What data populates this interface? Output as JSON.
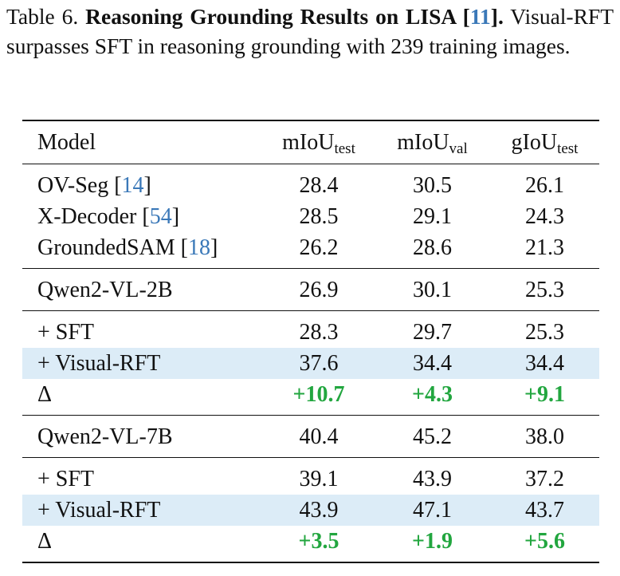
{
  "caption": {
    "label": "Table 6.",
    "title": "Reasoning Grounding Results on LISA [",
    "ref": "11",
    "title_end": "].",
    "text": "Visual-RFT surpasses SFT in reasoning grounding with 239 training images."
  },
  "table": {
    "header": [
      {
        "text": "Model"
      },
      {
        "text": "mIoU",
        "sub": "test"
      },
      {
        "text": "mIoU",
        "sub": "val"
      },
      {
        "text": "gIoU",
        "sub": "test"
      }
    ],
    "groups": [
      [
        {
          "model": {
            "text": "OV-Seg [",
            "ref": "14",
            "after": "]"
          },
          "cells": [
            "28.4",
            "30.5",
            "26.1"
          ]
        },
        {
          "model": {
            "text": "X-Decoder [",
            "ref": "54",
            "after": "]"
          },
          "cells": [
            "28.5",
            "29.1",
            "24.3"
          ]
        },
        {
          "model": {
            "text": "GroundedSAM [",
            "ref": "18",
            "after": "]"
          },
          "cells": [
            "26.2",
            "28.6",
            "21.3"
          ]
        }
      ],
      [
        {
          "model": {
            "text": "Qwen2-VL-2B"
          },
          "cells": [
            "26.9",
            "30.1",
            "25.3"
          ]
        }
      ],
      [
        {
          "model": {
            "text": "+ SFT"
          },
          "cells": [
            "28.3",
            "29.7",
            "25.3"
          ]
        },
        {
          "model": {
            "text": "+ Visual-RFT"
          },
          "cells": [
            "37.6",
            "34.4",
            "34.4"
          ],
          "highlight": true
        },
        {
          "model": {
            "text": "Δ"
          },
          "cells": [
            "+10.7",
            "+4.3",
            "+9.1"
          ],
          "delta": true
        }
      ],
      [
        {
          "model": {
            "text": "Qwen2-VL-7B"
          },
          "cells": [
            "40.4",
            "45.2",
            "38.0"
          ]
        }
      ],
      [
        {
          "model": {
            "text": "+ SFT"
          },
          "cells": [
            "39.1",
            "43.9",
            "37.2"
          ]
        },
        {
          "model": {
            "text": "+ Visual-RFT"
          },
          "cells": [
            "43.9",
            "47.1",
            "43.7"
          ],
          "highlight": true
        },
        {
          "model": {
            "text": "Δ"
          },
          "cells": [
            "+3.5",
            "+1.9",
            "+5.6"
          ],
          "delta": true
        }
      ]
    ]
  }
}
